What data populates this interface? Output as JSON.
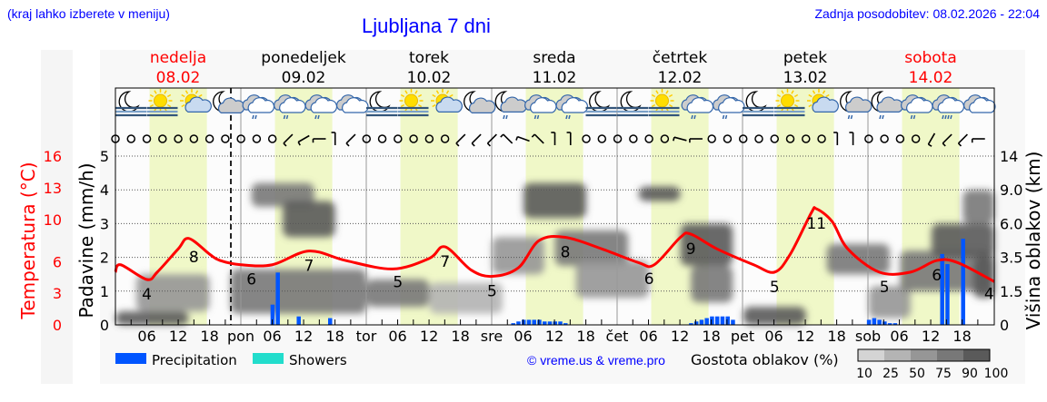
{
  "header": {
    "subtitle": "(kraj lahko izberete v meniju)",
    "title": "Ljubljana 7 dni",
    "updated": "Zadnja posodobitev: 08.02.2026 - 22:04"
  },
  "days": [
    {
      "name": "nedelja",
      "date": "08.02",
      "weekend": true,
      "short": ""
    },
    {
      "name": "ponedeljek",
      "date": "09.02",
      "weekend": false,
      "short": "pon"
    },
    {
      "name": "torek",
      "date": "10.02",
      "weekend": false,
      "short": "tor"
    },
    {
      "name": "sreda",
      "date": "11.02",
      "weekend": false,
      "short": "sre"
    },
    {
      "name": "četrtek",
      "date": "12.02",
      "weekend": false,
      "short": "čet"
    },
    {
      "name": "petek",
      "date": "13.02",
      "weekend": false,
      "short": "pet"
    },
    {
      "name": "sobota",
      "date": "14.02",
      "weekend": true,
      "short": "sob"
    }
  ],
  "hour_ticks": [
    "06",
    "12",
    "18"
  ],
  "now_marker": "08.02 22:04",
  "icons": [
    "moon-fog",
    "sun-fog",
    "sun-cloud",
    "moon-cloud",
    "cloud-drizzle",
    "cloud-drizzle",
    "cloud-drizzle",
    "cloudy",
    "moon-fog",
    "sun-fog",
    "sun-cloud",
    "moon-cloud",
    "moon-cloud-drizzle",
    "cloud-drizzle",
    "cloud-drizzle",
    "moon-fog",
    "moon-fog",
    "sun-fog",
    "cloud-drizzle",
    "cloud-drizzle",
    "moon-fog",
    "sun-fog",
    "sun-cloud",
    "moon-cloud-drizzle",
    "moon-cloud-drizzle",
    "cloud-drizzle",
    "cloud-rain",
    "cloudy"
  ],
  "wind": [
    "calm",
    "calm",
    "calm",
    "calm",
    "calm",
    "calm",
    "calm",
    "calm",
    "calm",
    "calm",
    "calm",
    225,
    210,
    180,
    90,
    225,
    "calm",
    "calm",
    "calm",
    "calm",
    "calm",
    "calm",
    225,
    225,
    225,
    135,
    160,
    135,
    90,
    90,
    "calm",
    "calm",
    "calm",
    "calm",
    "calm",
    "calm",
    165,
    180,
    "calm",
    "calm",
    "calm",
    "calm",
    "calm",
    "calm",
    "calm",
    "calm",
    90,
    90,
    "calm",
    "calm",
    "calm",
    "calm",
    240,
    225,
    225,
    180
  ],
  "legend": {
    "precipitation": "Precipitation",
    "showers": "Showers",
    "precip_color": "#0055ff",
    "showers_color": "#22ddcc",
    "copyright": "© vreme.us & vreme.pro",
    "cloud_title": "Gostota oblakov (%)",
    "cloud_levels": [
      "10",
      "25",
      "50",
      "75",
      "90",
      "100"
    ],
    "cloud_colors": [
      "#d4d4d4",
      "#b4b4b4",
      "#969696",
      "#787878",
      "#5a5a5a"
    ]
  },
  "chart_data": {
    "type": "line",
    "axes": {
      "temperature": {
        "label": "Temperatura (°C)",
        "ticks": [
          "0",
          "3",
          "6",
          "10",
          "13",
          "16"
        ],
        "range": [
          0,
          16
        ],
        "color": "#ff0000"
      },
      "precipitation": {
        "label": "Padavine (mm/h)",
        "ticks": [
          "0",
          "1",
          "2",
          "3",
          "4",
          "5"
        ],
        "range": [
          0,
          5
        ]
      },
      "cloud_height": {
        "label": "Višina oblakov (km)",
        "ticks": [
          "0",
          "1.5",
          "3.5",
          "6.0",
          "9.0",
          "14"
        ]
      }
    },
    "grid": true,
    "temperature": [
      [
        "08.02 00",
        5.0
      ],
      [
        "08.02 01",
        5.7
      ],
      [
        "08.02 06",
        4.3
      ],
      [
        "08.02 08",
        5.0
      ],
      [
        "08.02 12",
        7.2
      ],
      [
        "08.02 14",
        8.2
      ],
      [
        "08.02 18",
        6.7
      ],
      [
        "08.02 20",
        6.1
      ],
      [
        "09.02 00",
        5.7
      ],
      [
        "09.02 06",
        5.7
      ],
      [
        "09.02 13",
        7.0
      ],
      [
        "09.02 20",
        6.1
      ],
      [
        "10.02 05",
        5.3
      ],
      [
        "10.02 12",
        6.3
      ],
      [
        "10.02 15",
        7.4
      ],
      [
        "10.02 20",
        5.2
      ],
      [
        "11.02 00",
        4.6
      ],
      [
        "11.02 05",
        5.4
      ],
      [
        "11.02 09",
        8.0
      ],
      [
        "11.02 14",
        8.3
      ],
      [
        "11.02 21",
        7.2
      ],
      [
        "12.02 04",
        5.9
      ],
      [
        "12.02 07",
        5.7
      ],
      [
        "12.02 12",
        8.3
      ],
      [
        "12.02 14",
        8.6
      ],
      [
        "12.02 19",
        7.2
      ],
      [
        "13.02 02",
        5.7
      ],
      [
        "13.02 06",
        5.0
      ],
      [
        "13.02 09",
        6.7
      ],
      [
        "13.02 13",
        10.6
      ],
      [
        "13.02 14",
        11.0
      ],
      [
        "13.02 17",
        9.8
      ],
      [
        "13.02 20",
        7.2
      ],
      [
        "14.02 02",
        5.0
      ],
      [
        "14.02 08",
        5.0
      ],
      [
        "14.02 13",
        6.1
      ],
      [
        "14.02 17",
        5.9
      ],
      [
        "15.02 00",
        4.1
      ]
    ],
    "temp_labels": [
      [
        "08.02 06",
        "4"
      ],
      [
        "08.02 15",
        "8"
      ],
      [
        "09.02 02",
        "6"
      ],
      [
        "09.02 13",
        "7"
      ],
      [
        "10.02 06",
        "5"
      ],
      [
        "10.02 15",
        "7"
      ],
      [
        "11.02 00",
        "5"
      ],
      [
        "11.02 14",
        "8"
      ],
      [
        "12.02 06",
        "6"
      ],
      [
        "12.02 14",
        "9"
      ],
      [
        "13.02 06",
        "5"
      ],
      [
        "13.02 14",
        "11"
      ],
      [
        "14.02 03",
        "5"
      ],
      [
        "14.02 13",
        "6"
      ],
      [
        "14.02 23",
        "4"
      ]
    ],
    "precipitation": [
      [
        "09.02 06",
        0.6
      ],
      [
        "09.02 07",
        1.55
      ],
      [
        "09.02 11",
        0.25
      ],
      [
        "09.02 17",
        0.2
      ],
      [
        "11.02 04",
        0.05
      ],
      [
        "11.02 05",
        0.1
      ],
      [
        "11.02 06",
        0.15
      ],
      [
        "11.02 07",
        0.15
      ],
      [
        "11.02 08",
        0.15
      ],
      [
        "11.02 09",
        0.15
      ],
      [
        "11.02 10",
        0.1
      ],
      [
        "11.02 11",
        0.1
      ],
      [
        "11.02 12",
        0.1
      ],
      [
        "11.02 13",
        0.1
      ],
      [
        "11.02 14",
        0.05
      ],
      [
        "12.02 14",
        0.05
      ],
      [
        "12.02 15",
        0.1
      ],
      [
        "12.02 16",
        0.15
      ],
      [
        "12.02 17",
        0.2
      ],
      [
        "12.02 18",
        0.25
      ],
      [
        "12.02 19",
        0.25
      ],
      [
        "12.02 20",
        0.25
      ],
      [
        "12.02 21",
        0.25
      ],
      [
        "12.02 22",
        0.15
      ],
      [
        "14.02 00",
        0.15
      ],
      [
        "14.02 01",
        0.2
      ],
      [
        "14.02 02",
        0.15
      ],
      [
        "14.02 03",
        0.1
      ],
      [
        "14.02 04",
        0.05
      ],
      [
        "14.02 05",
        0.05
      ],
      [
        "14.02 14",
        2.1
      ],
      [
        "14.02 15",
        1.8
      ],
      [
        "14.02 18",
        2.55
      ]
    ],
    "cloud_density": [
      {
        "t": "08.02 00",
        "hours": 14,
        "km_low": 0,
        "km_high": 0.6,
        "density": 90
      },
      {
        "t": "08.02 04",
        "hours": 14,
        "km_low": 0.6,
        "km_high": 2.5,
        "density": 50
      },
      {
        "t": "08.02 22",
        "hours": 26,
        "km_low": 0.5,
        "km_high": 2.8,
        "density": 75
      },
      {
        "t": "09.02 02",
        "hours": 12,
        "km_low": 7.5,
        "km_high": 10,
        "density": 75
      },
      {
        "t": "09.02 08",
        "hours": 10,
        "km_low": 5,
        "km_high": 8,
        "density": 90
      },
      {
        "t": "10.02 00",
        "hours": 12,
        "km_low": 0.8,
        "km_high": 2.2,
        "density": 75
      },
      {
        "t": "10.02 12",
        "hours": 14,
        "km_low": 0.5,
        "km_high": 2,
        "density": 25
      },
      {
        "t": "11.02 00",
        "hours": 10,
        "km_low": 2.5,
        "km_high": 5,
        "density": 50
      },
      {
        "t": "11.02 06",
        "hours": 12,
        "km_low": 6.5,
        "km_high": 10,
        "density": 90
      },
      {
        "t": "11.02 12",
        "hours": 14,
        "km_low": 3,
        "km_high": 5.5,
        "density": 75
      },
      {
        "t": "11.02 16",
        "hours": 14,
        "km_low": 1.2,
        "km_high": 3.3,
        "density": 50
      },
      {
        "t": "12.02 04",
        "hours": 8,
        "km_low": 8,
        "km_high": 9.5,
        "density": 90
      },
      {
        "t": "12.02 12",
        "hours": 10,
        "km_low": 3,
        "km_high": 6,
        "density": 90
      },
      {
        "t": "12.02 14",
        "hours": 8,
        "km_low": 1,
        "km_high": 3,
        "density": 75
      },
      {
        "t": "13.02 00",
        "hours": 12,
        "km_low": 0,
        "km_high": 0.8,
        "density": 90
      },
      {
        "t": "13.02 16",
        "hours": 12,
        "km_low": 2.5,
        "km_high": 4.5,
        "density": 75
      },
      {
        "t": "14.02 00",
        "hours": 8,
        "km_low": 0.3,
        "km_high": 1.8,
        "density": 50
      },
      {
        "t": "14.02 06",
        "hours": 18,
        "km_low": 1.5,
        "km_high": 4,
        "density": 75
      },
      {
        "t": "14.02 12",
        "hours": 12,
        "km_low": 3.5,
        "km_high": 6,
        "density": 90
      },
      {
        "t": "14.02 18",
        "hours": 6,
        "km_low": 6,
        "km_high": 9,
        "density": 75
      },
      {
        "t": "14.02 20",
        "hours": 4,
        "km_low": 1.2,
        "km_high": 3.5,
        "density": 90
      }
    ]
  }
}
